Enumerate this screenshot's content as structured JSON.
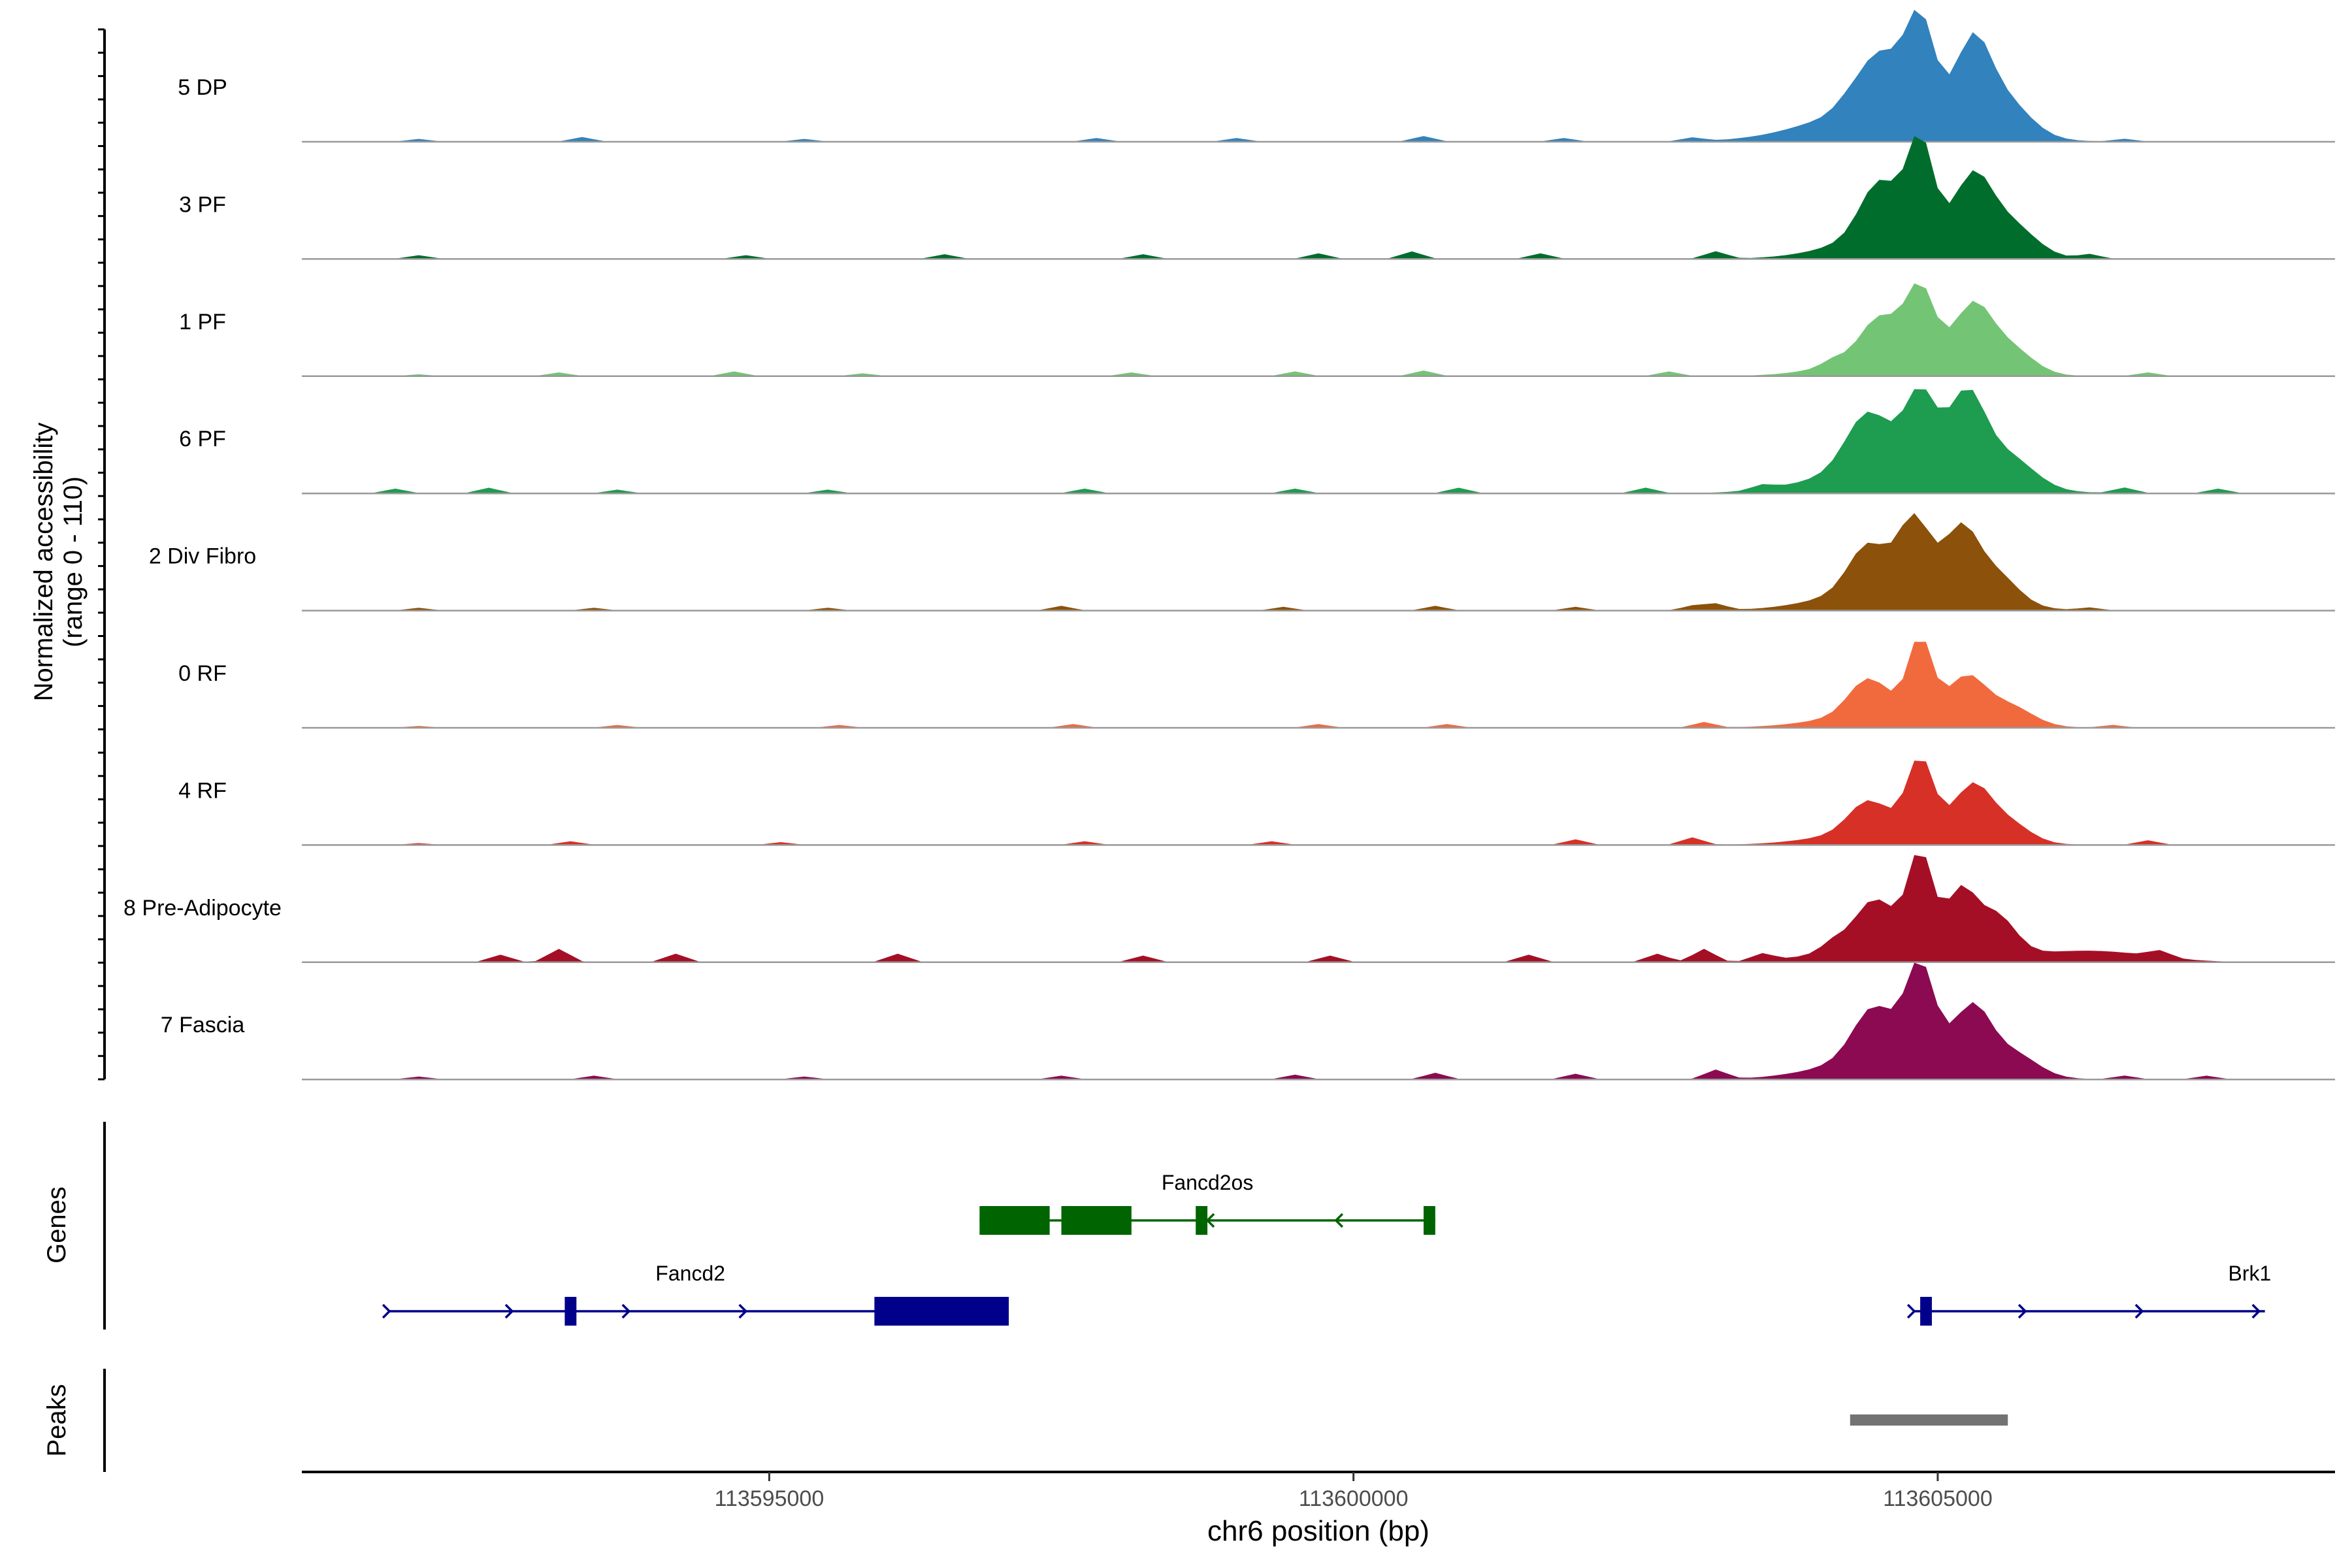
{
  "chart_data": {
    "type": "area",
    "title": "",
    "ylabel": "Normalized accessibility",
    "ylabel_range": "(range 0 - 110)",
    "ylim": [
      0,
      110
    ],
    "xlabel": "chr6 position (bp)",
    "xlim": [
      113591000,
      113608400
    ],
    "x_ticks": [
      113595000,
      113600000,
      113605000
    ],
    "x_tick_labels": [
      "113595000",
      "113600000",
      "113605000"
    ],
    "bin_size_bp": 100,
    "tracks": [
      {
        "name": "5 DP",
        "color": "#3182BD",
        "peaks": [
          [
            113604500,
            55,
            180
          ],
          [
            113604850,
            95,
            120
          ],
          [
            113605300,
            75,
            140
          ],
          [
            113605550,
            38,
            220
          ],
          [
            113604600,
            40,
            600
          ]
        ],
        "noise": [
          [
            113592000,
            3
          ],
          [
            113593400,
            5
          ],
          [
            113595300,
            3
          ],
          [
            113597800,
            4
          ],
          [
            113599000,
            4
          ],
          [
            113600600,
            6
          ],
          [
            113601800,
            4
          ],
          [
            113602900,
            4
          ],
          [
            113604200,
            5
          ],
          [
            113606600,
            3
          ]
        ]
      },
      {
        "name": "3 PF",
        "color": "#006D2C",
        "peaks": [
          [
            113604500,
            55,
            160
          ],
          [
            113604850,
            100,
            110
          ],
          [
            113605300,
            65,
            150
          ],
          [
            113605600,
            35,
            220
          ],
          [
            113604700,
            30,
            500
          ]
        ],
        "noise": [
          [
            113592000,
            4
          ],
          [
            113594800,
            4
          ],
          [
            113596500,
            5
          ],
          [
            113598200,
            5
          ],
          [
            113599700,
            6
          ],
          [
            113600500,
            8
          ],
          [
            113601600,
            6
          ],
          [
            113603100,
            8
          ],
          [
            113606300,
            5
          ]
        ]
      },
      {
        "name": "1 PF",
        "color": "#74C476",
        "peaks": [
          [
            113604500,
            40,
            160
          ],
          [
            113604850,
            72,
            120
          ],
          [
            113605300,
            58,
            150
          ],
          [
            113605600,
            28,
            200
          ],
          [
            113604700,
            25,
            500
          ]
        ],
        "noise": [
          [
            113592000,
            2
          ],
          [
            113593200,
            4
          ],
          [
            113594700,
            5
          ],
          [
            113595800,
            3
          ],
          [
            113598100,
            4
          ],
          [
            113599500,
            5
          ],
          [
            113600600,
            6
          ],
          [
            113602700,
            5
          ],
          [
            113604100,
            6
          ],
          [
            113606800,
            4
          ]
        ]
      },
      {
        "name": "6 PF",
        "color": "#1E9C50",
        "peaks": [
          [
            113604400,
            55,
            180
          ],
          [
            113604850,
            75,
            130
          ],
          [
            113605250,
            80,
            150
          ],
          [
            113605600,
            30,
            220
          ],
          [
            113604700,
            35,
            600
          ]
        ],
        "noise": [
          [
            113591800,
            5
          ],
          [
            113592600,
            6
          ],
          [
            113593700,
            4
          ],
          [
            113595500,
            4
          ],
          [
            113597700,
            5
          ],
          [
            113599500,
            5
          ],
          [
            113600900,
            6
          ],
          [
            113602500,
            6
          ],
          [
            113603500,
            5
          ],
          [
            113606600,
            6
          ],
          [
            113607400,
            5
          ]
        ]
      },
      {
        "name": "2 Div Fibro",
        "color": "#8C510A",
        "peaks": [
          [
            113604400,
            45,
            160
          ],
          [
            113604800,
            70,
            130
          ],
          [
            113605200,
            65,
            140
          ],
          [
            113605500,
            30,
            180
          ],
          [
            113604700,
            30,
            550
          ]
        ],
        "noise": [
          [
            113592000,
            3
          ],
          [
            113593500,
            3
          ],
          [
            113595500,
            3
          ],
          [
            113597500,
            5
          ],
          [
            113599400,
            4
          ],
          [
            113600700,
            5
          ],
          [
            113601900,
            4
          ],
          [
            113602900,
            5
          ],
          [
            113603100,
            7
          ],
          [
            113606300,
            3
          ]
        ]
      },
      {
        "name": "0 RF",
        "color": "#F16A3E",
        "peaks": [
          [
            113604400,
            35,
            160
          ],
          [
            113604850,
            78,
            100
          ],
          [
            113605250,
            40,
            150
          ],
          [
            113605600,
            20,
            200
          ],
          [
            113604700,
            20,
            550
          ]
        ],
        "noise": [
          [
            113592000,
            2
          ],
          [
            113593700,
            3
          ],
          [
            113595600,
            3
          ],
          [
            113597600,
            4
          ],
          [
            113599700,
            4
          ],
          [
            113600800,
            4
          ],
          [
            113603000,
            6
          ],
          [
            113606500,
            3
          ]
        ]
      },
      {
        "name": "4 RF",
        "color": "#D73027",
        "peaks": [
          [
            113604400,
            30,
            160
          ],
          [
            113604850,
            75,
            110
          ],
          [
            113605300,
            50,
            150
          ],
          [
            113605600,
            20,
            180
          ],
          [
            113604700,
            20,
            550
          ]
        ],
        "noise": [
          [
            113592000,
            2
          ],
          [
            113593300,
            4
          ],
          [
            113595100,
            3
          ],
          [
            113597700,
            4
          ],
          [
            113599300,
            4
          ],
          [
            113601900,
            6
          ],
          [
            113602900,
            8
          ],
          [
            113606800,
            5
          ]
        ]
      },
      {
        "name": "8 Pre-Adipocyte",
        "color": "#A50F26",
        "peaks": [
          [
            113604450,
            40,
            160
          ],
          [
            113604850,
            90,
            100
          ],
          [
            113605200,
            55,
            120
          ],
          [
            113605500,
            40,
            160
          ],
          [
            113604700,
            30,
            500
          ],
          [
            113606300,
            12,
            500
          ]
        ],
        "noise": [
          [
            113592700,
            8
          ],
          [
            113593200,
            14
          ],
          [
            113594200,
            9
          ],
          [
            113596100,
            9
          ],
          [
            113598200,
            7
          ],
          [
            113599800,
            7
          ],
          [
            113601500,
            8
          ],
          [
            113602600,
            9
          ],
          [
            113603000,
            14
          ],
          [
            113603500,
            8
          ],
          [
            113604100,
            8
          ],
          [
            113606900,
            7
          ]
        ]
      },
      {
        "name": "7 Fascia",
        "color": "#8C0A52",
        "peaks": [
          [
            113604450,
            50,
            170
          ],
          [
            113604850,
            95,
            120
          ],
          [
            113605300,
            60,
            150
          ],
          [
            113605650,
            22,
            200
          ],
          [
            113604700,
            30,
            550
          ]
        ],
        "noise": [
          [
            113592000,
            3
          ],
          [
            113593500,
            4
          ],
          [
            113595300,
            3
          ],
          [
            113597500,
            4
          ],
          [
            113599500,
            5
          ],
          [
            113600700,
            7
          ],
          [
            113601900,
            6
          ],
          [
            113603100,
            10
          ],
          [
            113606600,
            4
          ],
          [
            113607300,
            4
          ]
        ]
      }
    ],
    "genes_label": "Genes",
    "genes": [
      {
        "name": "Fancd2os",
        "strand": "-",
        "color": "#006400",
        "start": 113596800,
        "end": 113600700,
        "exons": [
          [
            113596800,
            113597400
          ],
          [
            113597500,
            113598100
          ],
          [
            113598650,
            113598750
          ],
          [
            113600600,
            113600700
          ]
        ],
        "arrows": [
          113598750,
          113599850
        ]
      },
      {
        "name": "Fancd2",
        "strand": "+",
        "color": "#00008B",
        "start": 113591750,
        "end": 113596900,
        "exons": [
          [
            113593250,
            113593350
          ],
          [
            113595900,
            113597050
          ]
        ],
        "arrows": [
          113591750,
          113592800,
          113593800,
          113594800
        ]
      },
      {
        "name": "Brk1",
        "color": "#00008B",
        "strand": "+",
        "start": 113604800,
        "end": 113607800,
        "exons": [
          [
            113604850,
            113604950
          ]
        ],
        "arrows": [
          113604800,
          113605750,
          113606750,
          113607750
        ]
      }
    ],
    "peaks_label": "Peaks",
    "peak_regions": [
      [
        113604250,
        113605600
      ]
    ]
  }
}
